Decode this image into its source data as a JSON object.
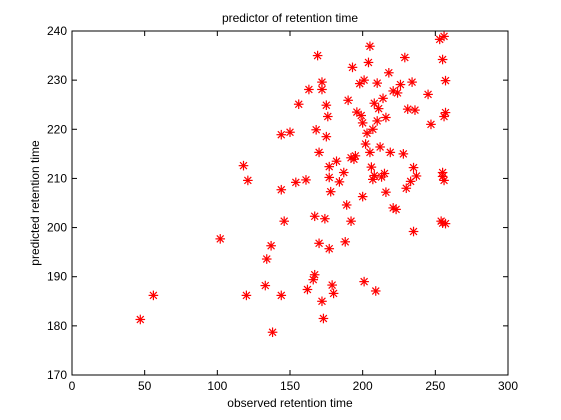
{
  "chart_data": {
    "type": "scatter",
    "title": "predictor of retention time",
    "xlabel": "observed retention time",
    "ylabel": "predicted retention time",
    "xlim": [
      0,
      300
    ],
    "ylim": [
      170,
      240
    ],
    "xticks": [
      0,
      50,
      100,
      150,
      200,
      250,
      300
    ],
    "yticks": [
      170,
      180,
      190,
      200,
      210,
      220,
      230,
      240
    ],
    "xtick_labels": [
      "0",
      "50",
      "100",
      "150",
      "200",
      "250",
      "300"
    ],
    "ytick_labels": [
      "170",
      "180",
      "190",
      "200",
      "210",
      "220",
      "230",
      "240"
    ],
    "grid": false,
    "legend": "none",
    "marker": "asterisk",
    "marker_color": "#ff0000",
    "series": [
      {
        "points": [
          [
            47,
            181.3
          ],
          [
            56,
            186.2
          ],
          [
            102,
            197.7
          ],
          [
            118,
            212.6
          ],
          [
            121,
            209.6
          ],
          [
            120,
            186.2
          ],
          [
            133,
            188.2
          ],
          [
            134,
            193.6
          ],
          [
            137,
            196.3
          ],
          [
            138,
            178.7
          ],
          [
            144,
            186.2
          ],
          [
            144,
            207.7
          ],
          [
            146,
            201.3
          ],
          [
            144,
            218.9
          ],
          [
            150,
            219.4
          ],
          [
            154,
            209.2
          ],
          [
            156,
            225.1
          ],
          [
            161,
            209.7
          ],
          [
            162,
            187.4
          ],
          [
            163,
            228.1
          ],
          [
            166,
            189.4
          ],
          [
            167,
            190.4
          ],
          [
            167,
            202.3
          ],
          [
            168,
            219.9
          ],
          [
            169,
            235.0
          ],
          [
            170,
            215.3
          ],
          [
            170,
            196.8
          ],
          [
            172,
            229.6
          ],
          [
            172,
            228.1
          ],
          [
            172,
            185.0
          ],
          [
            173,
            181.5
          ],
          [
            174,
            201.8
          ],
          [
            175,
            224.9
          ],
          [
            175,
            218.5
          ],
          [
            176,
            222.6
          ],
          [
            177,
            212.4
          ],
          [
            177,
            210.2
          ],
          [
            177,
            195.7
          ],
          [
            178,
            207.3
          ],
          [
            179,
            188.3
          ],
          [
            180,
            186.6
          ],
          [
            182,
            213.5
          ],
          [
            184,
            209.3
          ],
          [
            187,
            211.2
          ],
          [
            188,
            197.1
          ],
          [
            189,
            204.6
          ],
          [
            190,
            225.9
          ],
          [
            192,
            214.2
          ],
          [
            192,
            201.3
          ],
          [
            193,
            232.6
          ],
          [
            194,
            213.9
          ],
          [
            195,
            214.6
          ],
          [
            196,
            223.5
          ],
          [
            198,
            229.3
          ],
          [
            199,
            222.8
          ],
          [
            200,
            206.3
          ],
          [
            200,
            221.3
          ],
          [
            201,
            230.0
          ],
          [
            201,
            189.0
          ],
          [
            202,
            217.0
          ],
          [
            203,
            219.2
          ],
          [
            204,
            233.6
          ],
          [
            205,
            236.9
          ],
          [
            205,
            215.3
          ],
          [
            206,
            212.3
          ],
          [
            207,
            220.0
          ],
          [
            207,
            209.8
          ],
          [
            208,
            225.3
          ],
          [
            208,
            210.6
          ],
          [
            209,
            187.1
          ],
          [
            210,
            221.7
          ],
          [
            210,
            229.4
          ],
          [
            211,
            224.2
          ],
          [
            212,
            216.4
          ],
          [
            213,
            210.3
          ],
          [
            214,
            226.3
          ],
          [
            215,
            211.0
          ],
          [
            216,
            207.2
          ],
          [
            216,
            222.4
          ],
          [
            218,
            231.5
          ],
          [
            219,
            215.3
          ],
          [
            221,
            227.8
          ],
          [
            221,
            204.0
          ],
          [
            223,
            203.7
          ],
          [
            224,
            227.4
          ],
          [
            226,
            229.1
          ],
          [
            228,
            215.0
          ],
          [
            229,
            234.6
          ],
          [
            230,
            208.0
          ],
          [
            231,
            224.1
          ],
          [
            233,
            209.4
          ],
          [
            234,
            229.6
          ],
          [
            235,
            212.2
          ],
          [
            235,
            199.2
          ],
          [
            236,
            223.9
          ],
          [
            237,
            210.5
          ],
          [
            245,
            227.1
          ],
          [
            247,
            221.0
          ],
          [
            253,
            238.3
          ],
          [
            254,
            201.3
          ],
          [
            255,
            234.2
          ],
          [
            255,
            211.2
          ],
          [
            255,
            210.4
          ],
          [
            255,
            200.9
          ],
          [
            256,
            222.6
          ],
          [
            256,
            238.9
          ],
          [
            256,
            209.6
          ],
          [
            257,
            223.4
          ],
          [
            257,
            229.9
          ],
          [
            257,
            200.8
          ]
        ]
      }
    ]
  }
}
